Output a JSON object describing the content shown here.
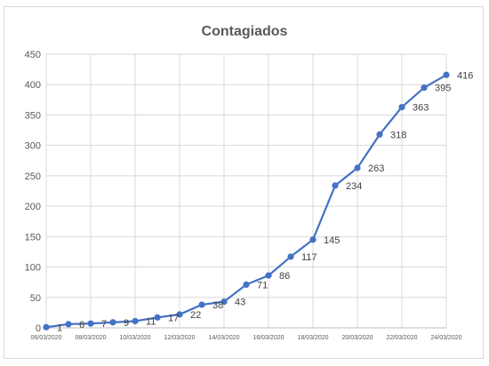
{
  "chart_data": {
    "type": "line",
    "title": "Contagiados",
    "xlabel": "",
    "ylabel": "",
    "ylim": [
      0,
      450
    ],
    "y_ticks": [
      "0",
      "50",
      "100",
      "150",
      "200",
      "250",
      "300",
      "350",
      "400",
      "450"
    ],
    "x": [
      "06/03/2020",
      "07/03/2020",
      "08/03/2020",
      "09/03/2020",
      "10/03/2020",
      "11/03/2020",
      "12/03/2020",
      "13/03/2020",
      "14/03/2020",
      "15/03/2020",
      "16/03/2020",
      "17/03/2020",
      "18/03/2020",
      "19/03/2020",
      "20/03/2020",
      "21/03/2020",
      "22/03/2020",
      "23/03/2020",
      "24/03/2020"
    ],
    "x_tick_labels": [
      "06/03/2020",
      "08/03/2020",
      "10/03/2020",
      "12/03/2020",
      "14/03/2020",
      "16/03/2020",
      "18/03/2020",
      "20/03/2020",
      "22/03/2020",
      "24/03/2020"
    ],
    "series": [
      {
        "values": [
          1,
          6,
          7,
          9,
          11,
          17,
          22,
          38,
          43,
          71,
          86,
          117,
          145,
          234,
          263,
          318,
          363,
          395,
          416
        ],
        "labels": [
          "1",
          "6",
          "7",
          "9",
          "11",
          "17",
          "22",
          "38",
          "43",
          "71",
          "86",
          "117",
          "145",
          "234",
          "263",
          "318",
          "363",
          "395",
          "416"
        ],
        "color": "#4472c4"
      }
    ],
    "grid": true,
    "gridline_color": "#d9d9d9",
    "axis_color": "#bfbfbf"
  }
}
